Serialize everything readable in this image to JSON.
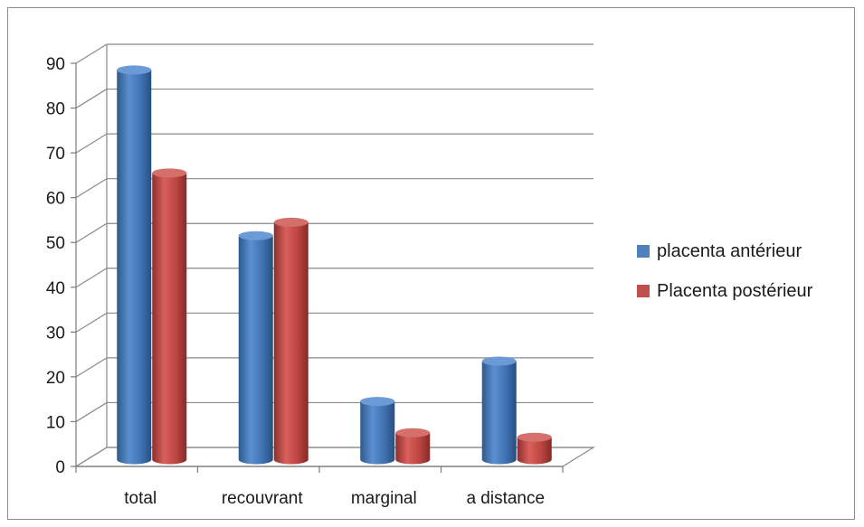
{
  "chart_data": {
    "type": "bar",
    "categories": [
      "total",
      "recouvrant",
      "marginal",
      "a distance"
    ],
    "series": [
      {
        "name": "placenta antérieur",
        "values": [
          87,
          50,
          13,
          22
        ]
      },
      {
        "name": "Placenta postérieur",
        "values": [
          64,
          53,
          6,
          5
        ]
      }
    ],
    "title": "",
    "xlabel": "",
    "ylabel": "",
    "ylim": [
      0,
      90
    ],
    "yticks": [
      "0",
      "10",
      "20",
      "30",
      "40",
      "50",
      "60",
      "70",
      "80",
      "90"
    ],
    "grid": true,
    "legend_position": "right",
    "colors": {
      "series_0": "#4f81bd",
      "series_1": "#c0504d"
    }
  }
}
